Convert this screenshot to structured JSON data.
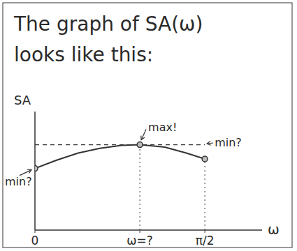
{
  "chart_data": {
    "type": "line",
    "title": "The graph of SA(ω) looks like this:",
    "y_label": "SA",
    "x_label": "ω",
    "x": [
      0,
      0.2,
      0.4,
      0.6,
      0.8,
      0.97,
      1.2,
      1.4,
      1.571
    ],
    "values": [
      5.2,
      5.9,
      6.5,
      6.9,
      7.15,
      7.2,
      7.0,
      6.5,
      6.0
    ],
    "xlim": [
      0,
      2.1
    ],
    "ylim": [
      0,
      10
    ],
    "xticks": [
      0,
      {
        "value": 0.97,
        "label": "ω=?"
      },
      {
        "value": 1.571,
        "label": "π/2"
      }
    ],
    "yticks": [],
    "tick_labels": "x",
    "grid": false,
    "color": "#333333",
    "annotations": [
      {
        "text": "min?",
        "x": 0,
        "y": 5.2
      },
      {
        "text": "max!",
        "x": 0.97,
        "y": 7.2
      },
      {
        "text": "min?",
        "x": 1.571,
        "y": 6.0
      }
    ]
  }
}
